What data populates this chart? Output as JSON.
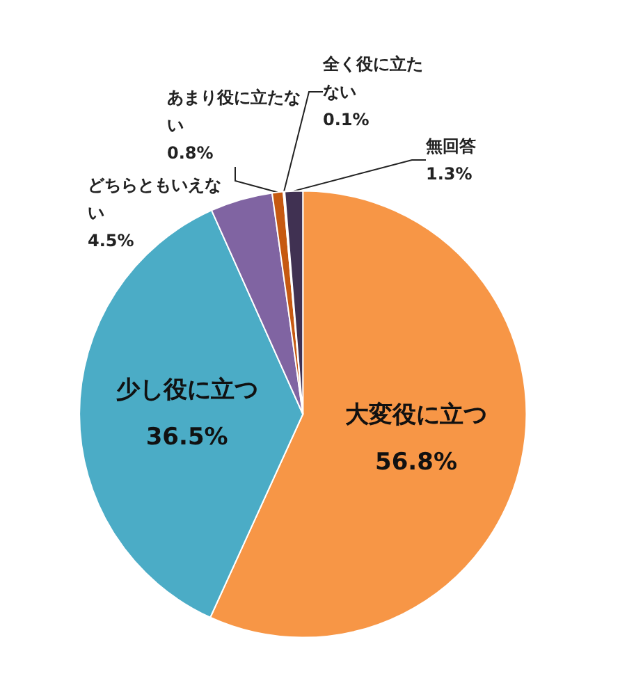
{
  "chart_data": {
    "type": "pie",
    "categories": [
      "大変役に立つ",
      "少し役に立つ",
      "どちらともいえない",
      "あまり役に立たない",
      "全く役に立たない",
      "無回答"
    ],
    "values": [
      56.8,
      36.5,
      4.5,
      0.8,
      0.1,
      1.3
    ],
    "colors": [
      "#f79646",
      "#4bacc6",
      "#8064a2",
      "#c65911",
      "#7f6000",
      "#403152"
    ],
    "value_labels": [
      "56.8%",
      "36.5%",
      "4.5%",
      "0.8%",
      "0.1%",
      "1.3%"
    ],
    "legend": false
  }
}
